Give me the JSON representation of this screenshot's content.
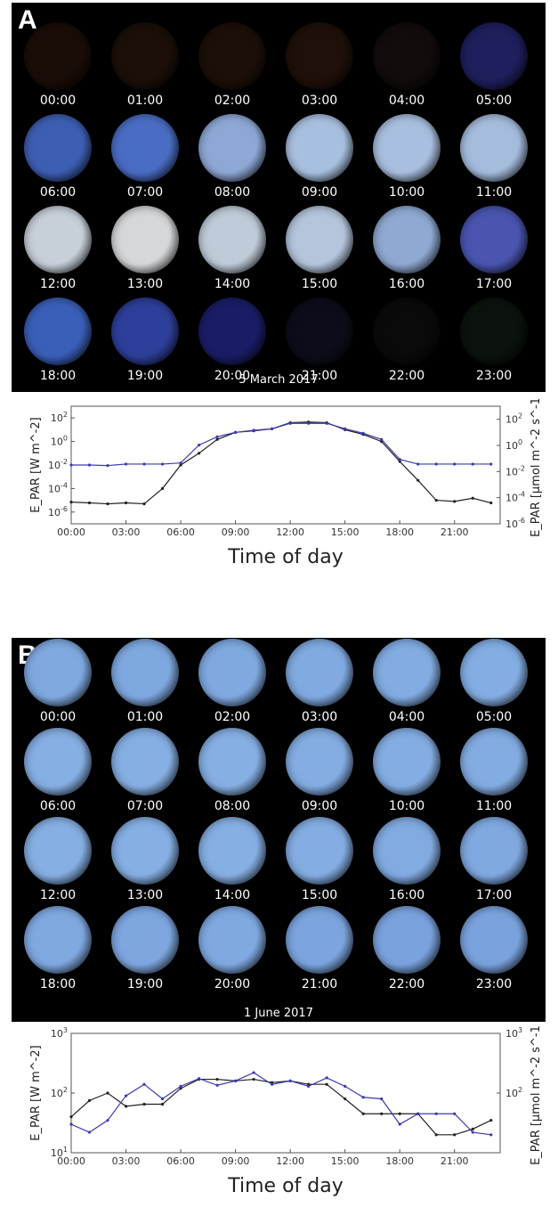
{
  "panelA": {
    "letter": "A",
    "date": "5 March 2017",
    "cells": [
      {
        "time": "00:00",
        "color": "#1a0d07"
      },
      {
        "time": "01:00",
        "color": "#1b0f08"
      },
      {
        "time": "02:00",
        "color": "#1c0f08"
      },
      {
        "time": "03:00",
        "color": "#1f1009"
      },
      {
        "time": "04:00",
        "color": "#120c0c"
      },
      {
        "time": "05:00",
        "color": "#1e1f5c"
      },
      {
        "time": "06:00",
        "color": "#3d5fb3"
      },
      {
        "time": "07:00",
        "color": "#4a6dc4"
      },
      {
        "time": "08:00",
        "color": "#8ea8d6"
      },
      {
        "time": "09:00",
        "color": "#a8c0e0"
      },
      {
        "time": "10:00",
        "color": "#a9bfdf"
      },
      {
        "time": "11:00",
        "color": "#a6bcdd"
      },
      {
        "time": "12:00",
        "color": "#c7cfd9"
      },
      {
        "time": "13:00",
        "color": "#d6d7d8"
      },
      {
        "time": "14:00",
        "color": "#bfcbd9"
      },
      {
        "time": "15:00",
        "color": "#b4c5dc"
      },
      {
        "time": "16:00",
        "color": "#8fa9d2"
      },
      {
        "time": "17:00",
        "color": "#4a55b0"
      },
      {
        "time": "18:00",
        "color": "#3a5fb8"
      },
      {
        "time": "19:00",
        "color": "#2d3f9a"
      },
      {
        "time": "20:00",
        "color": "#1a1d66"
      },
      {
        "time": "21:00",
        "color": "#0c0d1a"
      },
      {
        "time": "22:00",
        "color": "#0a0a0a"
      },
      {
        "time": "23:00",
        "color": "#0c120c"
      }
    ]
  },
  "panelB": {
    "letter": "B",
    "date": "1 June 2017",
    "cells": [
      {
        "time": "00:00",
        "color": "#7fa9e0"
      },
      {
        "time": "01:00",
        "color": "#7ea8e0"
      },
      {
        "time": "02:00",
        "color": "#7fa9e0"
      },
      {
        "time": "03:00",
        "color": "#80aae1"
      },
      {
        "time": "04:00",
        "color": "#82ace2"
      },
      {
        "time": "05:00",
        "color": "#83ade3"
      },
      {
        "time": "06:00",
        "color": "#86afe3"
      },
      {
        "time": "07:00",
        "color": "#86afe3"
      },
      {
        "time": "08:00",
        "color": "#86afe3"
      },
      {
        "time": "09:00",
        "color": "#84ade3"
      },
      {
        "time": "10:00",
        "color": "#84ade3"
      },
      {
        "time": "11:00",
        "color": "#83ace2"
      },
      {
        "time": "12:00",
        "color": "#86afe3"
      },
      {
        "time": "13:00",
        "color": "#86afe3"
      },
      {
        "time": "14:00",
        "color": "#86afe3"
      },
      {
        "time": "15:00",
        "color": "#84ade3"
      },
      {
        "time": "16:00",
        "color": "#82abe2"
      },
      {
        "time": "17:00",
        "color": "#80a9e1"
      },
      {
        "time": "18:00",
        "color": "#80a9e1"
      },
      {
        "time": "19:00",
        "color": "#7ea7e0"
      },
      {
        "time": "20:00",
        "color": "#80a9e1"
      },
      {
        "time": "21:00",
        "color": "#7ca5df"
      },
      {
        "time": "22:00",
        "color": "#7aa3de"
      },
      {
        "time": "23:00",
        "color": "#7aa3de"
      }
    ]
  },
  "chart_data": [
    {
      "type": "line",
      "xlabel": "Time of day",
      "ylabel": "E_PAR [W m^-2]",
      "ylabel_right": "E_PAR [µmol m^-2 s^-1]",
      "yscale": "log",
      "ylim": [
        1e-07,
        1000
      ],
      "ylim_right": [
        1e-06,
        1000
      ],
      "x_ticks": [
        "00:00",
        "03:00",
        "06:00",
        "09:00",
        "12:00",
        "15:00",
        "18:00",
        "21:00"
      ],
      "y_tick_exponents": [
        -6,
        -4,
        -2,
        0,
        2
      ],
      "y_right_tick_exponents": [
        -6,
        -4,
        -2,
        0,
        2
      ],
      "x": [
        0,
        1,
        2,
        3,
        4,
        5,
        6,
        7,
        8,
        9,
        10,
        11,
        12,
        13,
        14,
        15,
        16,
        17,
        18,
        19,
        20,
        21,
        22,
        23
      ],
      "series": [
        {
          "color": "#222222",
          "values": [
            7e-06,
            6e-06,
            5e-06,
            6e-06,
            5e-06,
            0.0001,
            0.01,
            0.1,
            1.5,
            6,
            8,
            12,
            40,
            45,
            40,
            10,
            4,
            1,
            0.02,
            0.0005,
            1e-05,
            8e-06,
            1.5e-05,
            6e-06
          ]
        },
        {
          "color": "#3b3bb0",
          "values": [
            0.01,
            0.01,
            0.009,
            0.012,
            0.012,
            0.012,
            0.015,
            0.5,
            2.5,
            6,
            9,
            12,
            35,
            35,
            35,
            12,
            5,
            1.5,
            0.03,
            0.012,
            0.012,
            0.012,
            0.012,
            0.012
          ]
        }
      ],
      "grid": false
    },
    {
      "type": "line",
      "xlabel": "Time of day",
      "ylabel": "E_PAR [W m^-2]",
      "ylabel_right": "E_PAR [µmol m^-2 s^-1]",
      "yscale": "log",
      "ylim": [
        10,
        1000
      ],
      "x_ticks": [
        "00:00",
        "03:00",
        "06:00",
        "09:00",
        "12:00",
        "15:00",
        "18:00",
        "21:00"
      ],
      "y_tick_exponents": [
        1,
        2,
        3
      ],
      "y_right_tick_exponents": [
        2,
        3
      ],
      "x": [
        0,
        1,
        2,
        3,
        4,
        5,
        6,
        7,
        8,
        9,
        10,
        11,
        12,
        13,
        14,
        15,
        16,
        17,
        18,
        19,
        20,
        21,
        22,
        23
      ],
      "series": [
        {
          "color": "#222222",
          "values": [
            40,
            75,
            100,
            60,
            65,
            65,
            120,
            170,
            170,
            160,
            170,
            150,
            160,
            140,
            140,
            80,
            45,
            45,
            45,
            45,
            20,
            20,
            25,
            35
          ]
        },
        {
          "color": "#3b3bb0",
          "values": [
            30,
            22,
            35,
            90,
            140,
            80,
            130,
            175,
            135,
            160,
            220,
            140,
            160,
            130,
            180,
            130,
            85,
            80,
            30,
            45,
            45,
            45,
            22,
            20
          ]
        }
      ],
      "grid": false
    }
  ]
}
